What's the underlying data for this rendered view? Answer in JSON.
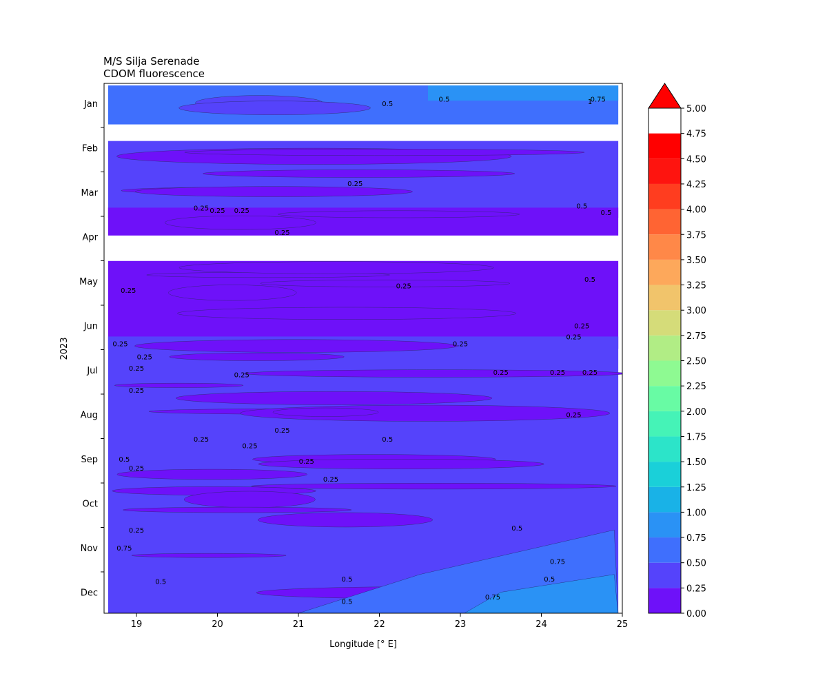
{
  "chart_data": {
    "type": "heatmap",
    "title": "M/S Silja Serenade",
    "subtitle": "CDOM fluorescence",
    "xlabel": "Longitude [° E]",
    "ylabel": "2023",
    "xlim": [
      18.6,
      25.0
    ],
    "x_ticks": [
      19,
      20,
      21,
      22,
      23,
      24,
      25
    ],
    "y_ticks": [
      "Jan",
      "Feb",
      "Mar",
      "Apr",
      "May",
      "Jun",
      "Jul",
      "Aug",
      "Sep",
      "Oct",
      "Nov",
      "Dec"
    ],
    "colorbar": {
      "ticks": [
        "0.00",
        "0.25",
        "0.50",
        "0.75",
        "1.00",
        "1.25",
        "1.50",
        "1.75",
        "2.00",
        "2.25",
        "2.50",
        "2.75",
        "3.00",
        "3.25",
        "3.50",
        "3.75",
        "4.00",
        "4.25",
        "4.50",
        "4.75",
        "5.00"
      ],
      "colors": [
        "#6e11f9",
        "#5543fb",
        "#3f6ffd",
        "#2a92f5",
        "#19b2e7",
        "#1ad0d9",
        "#2ce4c9",
        "#45f3b7",
        "#68fba4",
        "#8efa92",
        "#b1ed85",
        "#d5dc79",
        "#f1c46b",
        "#fda85b",
        "#ff8848",
        "#ff6433",
        "#ff3d1f",
        "#fe140f",
        "#ff0000"
      ],
      "extend": "max"
    },
    "bands": [
      {
        "month_start": 0.0,
        "month_end": 0.35,
        "base_value": 0.6
      },
      {
        "month_start": 1.25,
        "month_end": 2.45,
        "base_value": 0.4
      },
      {
        "month_start": 2.75,
        "month_end": 2.85,
        "base_value": 0.2
      },
      {
        "month_start": 3.95,
        "month_end": 5.4,
        "base_value": 0.2
      },
      {
        "month_start": 5.65,
        "month_end": 11.4,
        "base_value": 0.35
      }
    ],
    "contour_labels": [
      "0.5",
      "0.5",
      "0.75",
      "1",
      "0.25",
      "0.25",
      "0.25",
      "0.25",
      "0.5",
      "0.5",
      "0.25",
      "0.5",
      "0.25",
      "0.25",
      "0.25",
      "0.25",
      "0.25",
      "0.25",
      "0.25",
      "0.25",
      "0.25",
      "0.25",
      "0.25",
      "0.25",
      "0.25",
      "0.25",
      "0.25",
      "0.25",
      "0.25",
      "0.25",
      "0.5",
      "0.25",
      "0.25",
      "0.25",
      "0.5",
      "0.5",
      "0.5",
      "0.5",
      "0.5",
      "0.75",
      "0.75",
      "0.75",
      "0.5"
    ]
  }
}
